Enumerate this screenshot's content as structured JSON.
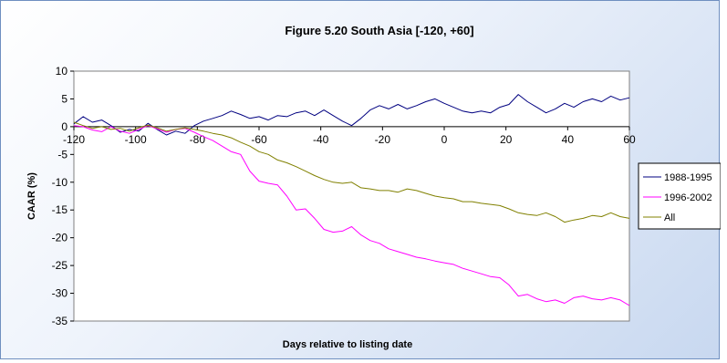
{
  "chart_data": {
    "type": "line",
    "title": "Figure 5.20 South Asia [-120, +60]",
    "xlabel": "Days relative to listing date",
    "ylabel": "CAAR (%)",
    "xlim": [
      -120,
      60
    ],
    "ylim": [
      -35,
      10
    ],
    "xticks": [
      -120,
      -100,
      -80,
      -60,
      -40,
      -20,
      0,
      20,
      40,
      60
    ],
    "yticks": [
      10,
      5,
      0,
      -5,
      -10,
      -15,
      -20,
      -25,
      -30,
      -35
    ],
    "grid": false,
    "legend": "right",
    "series": [
      {
        "name": "1988-1995",
        "color": "#000080",
        "points": [
          [
            -120,
            0.5
          ],
          [
            -117,
            1.8
          ],
          [
            -114,
            0.8
          ],
          [
            -111,
            1.2
          ],
          [
            -108,
            0.2
          ],
          [
            -105,
            -1.0
          ],
          [
            -102,
            -0.5
          ],
          [
            -99,
            -0.8
          ],
          [
            -96,
            0.6
          ],
          [
            -93,
            -0.5
          ],
          [
            -90,
            -1.5
          ],
          [
            -87,
            -0.8
          ],
          [
            -84,
            -1.2
          ],
          [
            -81,
            0.2
          ],
          [
            -78,
            1.0
          ],
          [
            -75,
            1.5
          ],
          [
            -72,
            2.0
          ],
          [
            -69,
            2.8
          ],
          [
            -66,
            2.2
          ],
          [
            -63,
            1.5
          ],
          [
            -60,
            1.8
          ],
          [
            -57,
            1.2
          ],
          [
            -54,
            2.0
          ],
          [
            -51,
            1.8
          ],
          [
            -48,
            2.5
          ],
          [
            -45,
            2.8
          ],
          [
            -42,
            2.0
          ],
          [
            -39,
            3.0
          ],
          [
            -36,
            2.0
          ],
          [
            -33,
            1.0
          ],
          [
            -30,
            0.2
          ],
          [
            -27,
            1.5
          ],
          [
            -24,
            3.0
          ],
          [
            -21,
            3.8
          ],
          [
            -18,
            3.2
          ],
          [
            -15,
            4.0
          ],
          [
            -12,
            3.2
          ],
          [
            -9,
            3.8
          ],
          [
            -6,
            4.5
          ],
          [
            -3,
            5.0
          ],
          [
            0,
            4.2
          ],
          [
            3,
            3.5
          ],
          [
            6,
            2.8
          ],
          [
            9,
            2.5
          ],
          [
            12,
            2.8
          ],
          [
            15,
            2.5
          ],
          [
            18,
            3.5
          ],
          [
            21,
            4.0
          ],
          [
            24,
            5.8
          ],
          [
            27,
            4.5
          ],
          [
            30,
            3.5
          ],
          [
            33,
            2.5
          ],
          [
            36,
            3.2
          ],
          [
            39,
            4.2
          ],
          [
            42,
            3.5
          ],
          [
            45,
            4.5
          ],
          [
            48,
            5.0
          ],
          [
            51,
            4.5
          ],
          [
            54,
            5.5
          ],
          [
            57,
            4.8
          ],
          [
            60,
            5.2
          ]
        ]
      },
      {
        "name": "1996-2002",
        "color": "#ff00ff",
        "points": [
          [
            -120,
            0.2
          ],
          [
            -117,
            0.0
          ],
          [
            -114,
            -0.6
          ],
          [
            -111,
            -0.9
          ],
          [
            -108,
            0.0
          ],
          [
            -105,
            -0.8
          ],
          [
            -102,
            -1.2
          ],
          [
            -99,
            -0.5
          ],
          [
            -96,
            0.2
          ],
          [
            -93,
            -0.4
          ],
          [
            -90,
            -1.0
          ],
          [
            -87,
            -0.5
          ],
          [
            -84,
            -0.3
          ],
          [
            -81,
            -1.0
          ],
          [
            -78,
            -1.8
          ],
          [
            -75,
            -2.5
          ],
          [
            -72,
            -3.5
          ],
          [
            -69,
            -4.5
          ],
          [
            -66,
            -5.0
          ],
          [
            -63,
            -8.0
          ],
          [
            -60,
            -9.8
          ],
          [
            -57,
            -10.2
          ],
          [
            -54,
            -10.5
          ],
          [
            -51,
            -12.5
          ],
          [
            -48,
            -15.0
          ],
          [
            -45,
            -14.8
          ],
          [
            -42,
            -16.5
          ],
          [
            -39,
            -18.5
          ],
          [
            -36,
            -19.0
          ],
          [
            -33,
            -18.8
          ],
          [
            -30,
            -18.0
          ],
          [
            -27,
            -19.5
          ],
          [
            -24,
            -20.5
          ],
          [
            -21,
            -21.0
          ],
          [
            -18,
            -22.0
          ],
          [
            -15,
            -22.5
          ],
          [
            -12,
            -23.0
          ],
          [
            -9,
            -23.5
          ],
          [
            -6,
            -23.8
          ],
          [
            -3,
            -24.2
          ],
          [
            0,
            -24.5
          ],
          [
            3,
            -24.8
          ],
          [
            6,
            -25.5
          ],
          [
            9,
            -26.0
          ],
          [
            12,
            -26.5
          ],
          [
            15,
            -27.0
          ],
          [
            18,
            -27.2
          ],
          [
            21,
            -28.5
          ],
          [
            24,
            -30.5
          ],
          [
            27,
            -30.2
          ],
          [
            30,
            -31.0
          ],
          [
            33,
            -31.5
          ],
          [
            36,
            -31.2
          ],
          [
            39,
            -31.8
          ],
          [
            42,
            -30.8
          ],
          [
            45,
            -30.5
          ],
          [
            48,
            -31.0
          ],
          [
            51,
            -31.2
          ],
          [
            54,
            -30.8
          ],
          [
            57,
            -31.2
          ],
          [
            60,
            -32.2
          ]
        ]
      },
      {
        "name": "All",
        "color": "#808000",
        "points": [
          [
            -120,
            0.8
          ],
          [
            -117,
            0.2
          ],
          [
            -114,
            -0.3
          ],
          [
            -111,
            0.0
          ],
          [
            -108,
            -0.5
          ],
          [
            -105,
            -0.3
          ],
          [
            -102,
            -0.8
          ],
          [
            -99,
            -0.2
          ],
          [
            -96,
            0.3
          ],
          [
            -93,
            -0.2
          ],
          [
            -90,
            -0.8
          ],
          [
            -87,
            -0.5
          ],
          [
            -84,
            -0.2
          ],
          [
            -81,
            -0.5
          ],
          [
            -78,
            -0.8
          ],
          [
            -75,
            -1.2
          ],
          [
            -72,
            -1.5
          ],
          [
            -69,
            -2.0
          ],
          [
            -66,
            -2.8
          ],
          [
            -63,
            -3.5
          ],
          [
            -60,
            -4.5
          ],
          [
            -57,
            -5.0
          ],
          [
            -54,
            -6.0
          ],
          [
            -51,
            -6.5
          ],
          [
            -48,
            -7.2
          ],
          [
            -45,
            -8.0
          ],
          [
            -42,
            -8.8
          ],
          [
            -39,
            -9.5
          ],
          [
            -36,
            -10.0
          ],
          [
            -33,
            -10.2
          ],
          [
            -30,
            -10.0
          ],
          [
            -27,
            -11.0
          ],
          [
            -24,
            -11.2
          ],
          [
            -21,
            -11.5
          ],
          [
            -18,
            -11.5
          ],
          [
            -15,
            -11.8
          ],
          [
            -12,
            -11.2
          ],
          [
            -9,
            -11.5
          ],
          [
            -6,
            -12.0
          ],
          [
            -3,
            -12.5
          ],
          [
            0,
            -12.8
          ],
          [
            3,
            -13.0
          ],
          [
            6,
            -13.5
          ],
          [
            9,
            -13.5
          ],
          [
            12,
            -13.8
          ],
          [
            15,
            -14.0
          ],
          [
            18,
            -14.2
          ],
          [
            21,
            -14.8
          ],
          [
            24,
            -15.5
          ],
          [
            27,
            -15.8
          ],
          [
            30,
            -16.0
          ],
          [
            33,
            -15.5
          ],
          [
            36,
            -16.2
          ],
          [
            39,
            -17.2
          ],
          [
            42,
            -16.8
          ],
          [
            45,
            -16.5
          ],
          [
            48,
            -16.0
          ],
          [
            51,
            -16.2
          ],
          [
            54,
            -15.5
          ],
          [
            57,
            -16.2
          ],
          [
            60,
            -16.5
          ]
        ]
      }
    ]
  }
}
